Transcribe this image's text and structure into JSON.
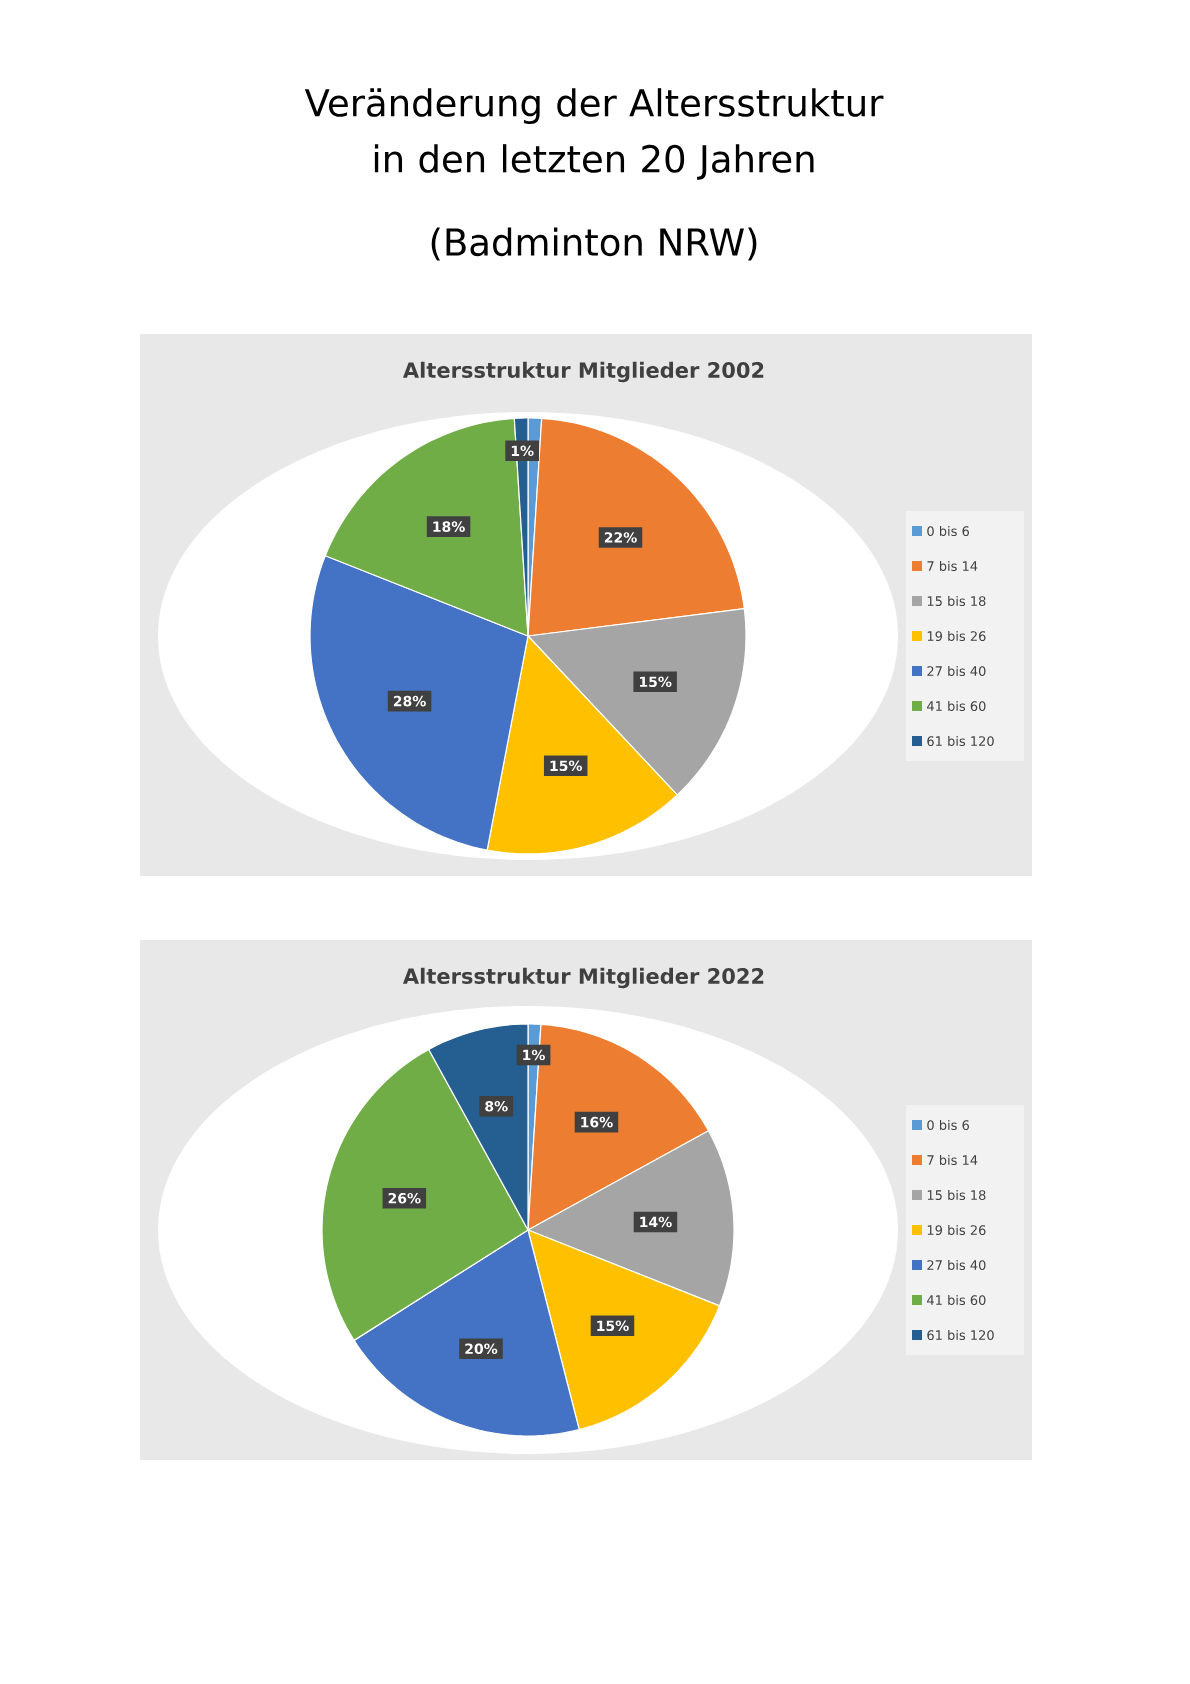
{
  "chart_data": [
    {
      "type": "other",
      "title": "Veränderung der Altersstruktur in den letzten 20 Jahren",
      "subtitle": "(Badminton NRW)"
    },
    {
      "type": "pie",
      "title": "Altersstruktur Mitglieder 2002",
      "legend": "right",
      "categories": [
        "0 bis 6",
        "7 bis 14",
        "15 bis 18",
        "19 bis 26",
        "27 bis 40",
        "41 bis 60",
        "61 bis 120"
      ],
      "values": [
        1,
        22,
        15,
        15,
        28,
        18,
        1
      ],
      "value_labels": [
        null,
        "22%",
        "15%",
        "15%",
        "28%",
        "18%",
        "1%"
      ],
      "colors": [
        "#5b9bd5",
        "#ed7d31",
        "#a5a5a5",
        "#ffc000",
        "#4472c4",
        "#70ad47",
        "#255e91"
      ]
    },
    {
      "type": "pie",
      "title": "Altersstruktur Mitglieder 2022",
      "legend": "right",
      "categories": [
        "0 bis 6",
        "7 bis 14",
        "15 bis 18",
        "19 bis 26",
        "27 bis 40",
        "41 bis 60",
        "61 bis 120"
      ],
      "values": [
        1,
        16,
        14,
        15,
        20,
        26,
        8
      ],
      "value_labels": [
        "1%",
        "16%",
        "14%",
        "15%",
        "20%",
        "26%",
        "8%"
      ],
      "colors": [
        "#5b9bd5",
        "#ed7d31",
        "#a5a5a5",
        "#ffc000",
        "#4472c4",
        "#70ad47",
        "#255e91"
      ]
    }
  ]
}
